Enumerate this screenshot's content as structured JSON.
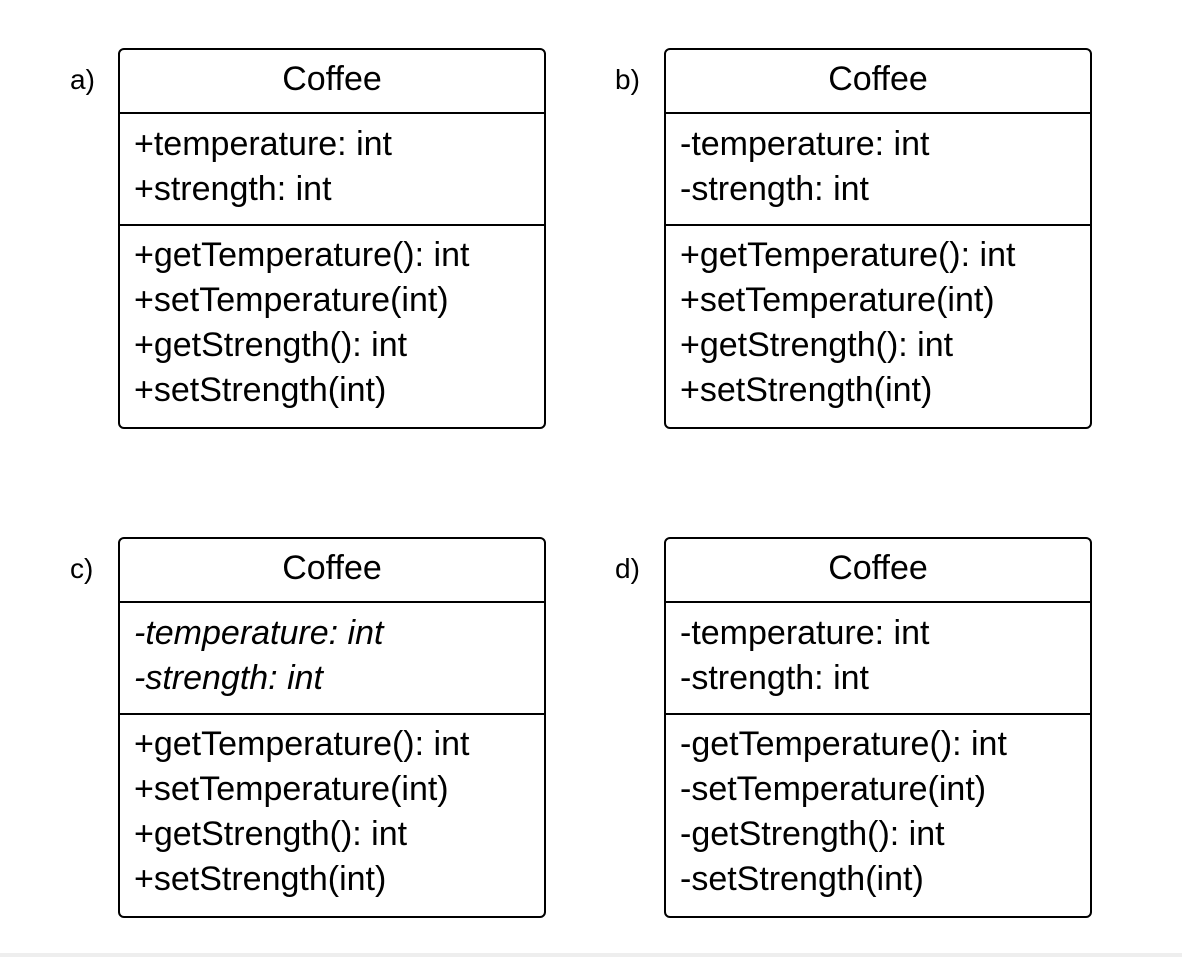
{
  "options": [
    {
      "label": "a)",
      "class_name": "Coffee",
      "attributes": [
        "+temperature: int",
        "+strength: int"
      ],
      "methods": [
        "+getTemperature(): int",
        "+setTemperature(int)",
        "+getStrength(): int",
        "+setStrength(int)"
      ],
      "attributes_italic": false
    },
    {
      "label": "b)",
      "class_name": "Coffee",
      "attributes": [
        "-temperature: int",
        "-strength: int"
      ],
      "methods": [
        "+getTemperature(): int",
        "+setTemperature(int)",
        "+getStrength(): int",
        "+setStrength(int)"
      ],
      "attributes_italic": false
    },
    {
      "label": "c)",
      "class_name": "Coffee",
      "attributes": [
        "-temperature: int",
        "-strength: int"
      ],
      "methods": [
        "+getTemperature(): int",
        "+setTemperature(int)",
        "+getStrength(): int",
        "+setStrength(int)"
      ],
      "attributes_italic": true
    },
    {
      "label": "d)",
      "class_name": "Coffee",
      "attributes": [
        "-temperature: int",
        "-strength: int"
      ],
      "methods": [
        "-getTemperature(): int",
        "-setTemperature(int)",
        "-getStrength(): int",
        "-setStrength(int)"
      ],
      "attributes_italic": false
    }
  ]
}
